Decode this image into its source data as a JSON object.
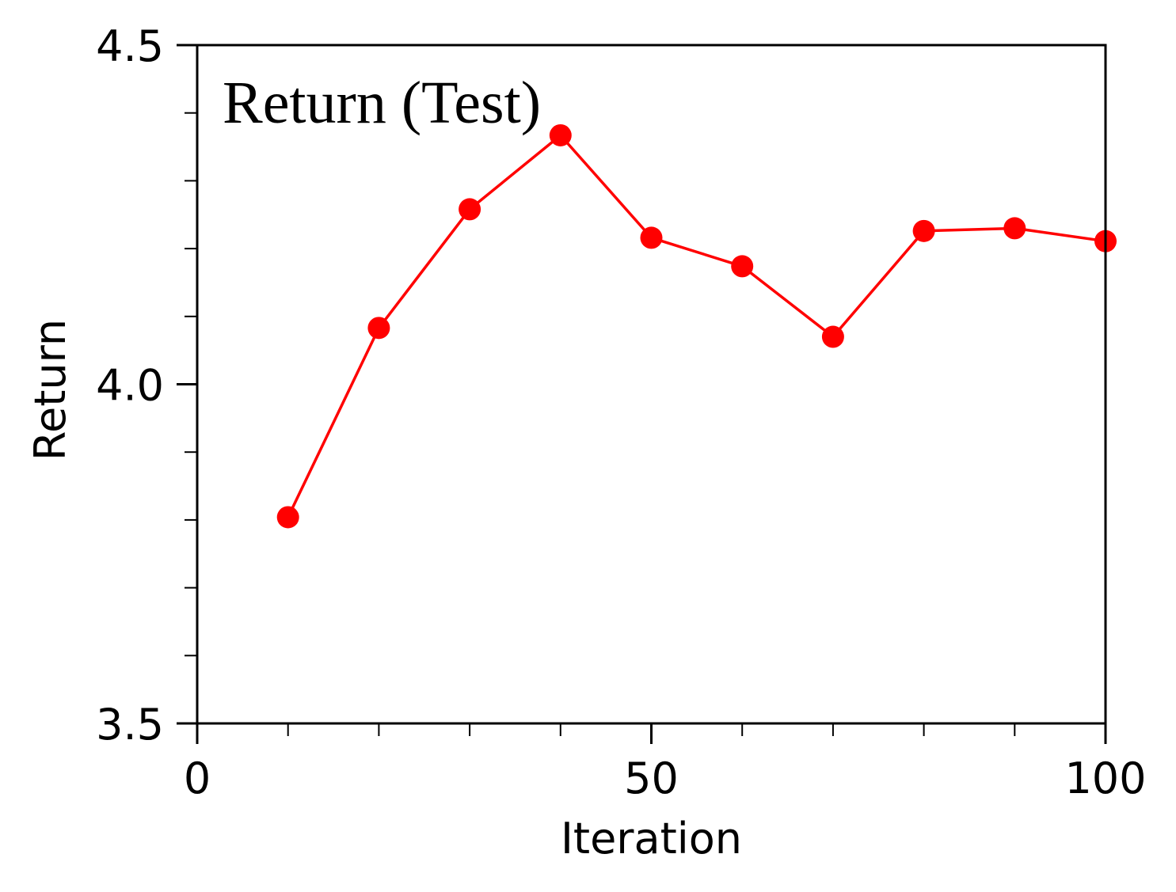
{
  "chart_data": {
    "type": "line",
    "title": "Return (Test)",
    "xlabel": "Iteration",
    "ylabel": "Return",
    "xlim": [
      0,
      100
    ],
    "ylim": [
      3.5,
      4.5
    ],
    "xticks": [
      0,
      50,
      100
    ],
    "xtick_labels": [
      "0",
      "50",
      "100"
    ],
    "x_minor_ticks": [
      10,
      20,
      30,
      40,
      60,
      70,
      80,
      90
    ],
    "yticks": [
      3.5,
      4.0,
      4.5
    ],
    "ytick_labels": [
      "3.5",
      "4.0",
      "4.5"
    ],
    "y_minor_ticks": [
      3.6,
      3.7,
      3.8,
      3.9,
      4.1,
      4.2,
      4.3,
      4.4
    ],
    "grid": false,
    "series": [
      {
        "color": "#ff0000",
        "marker": "circle",
        "x": [
          10,
          20,
          30,
          40,
          50,
          60,
          70,
          80,
          90,
          100
        ],
        "y": [
          3.804,
          4.083,
          4.258,
          4.367,
          4.216,
          4.174,
          4.07,
          4.226,
          4.23,
          4.211
        ]
      }
    ]
  }
}
